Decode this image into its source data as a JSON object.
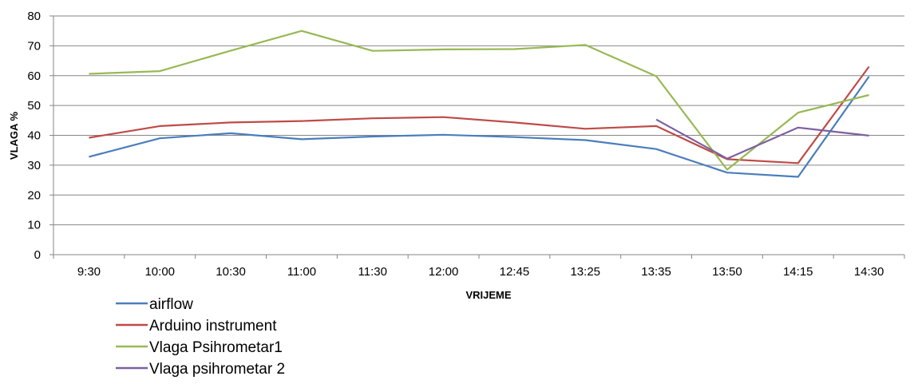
{
  "chart_data": {
    "type": "line",
    "title": "",
    "xlabel": "VRIJEME",
    "ylabel": "VLAGA %",
    "ylim": [
      0,
      80
    ],
    "yticks": [
      0,
      10,
      20,
      30,
      40,
      50,
      60,
      70,
      80
    ],
    "grid": true,
    "legend_position": "bottom-left",
    "categories": [
      "9:30",
      "10:00",
      "10:30",
      "11:00",
      "11:30",
      "12:00",
      "12:45",
      "13:25",
      "13:35",
      "13:50",
      "14:15",
      "14:30"
    ],
    "series": [
      {
        "name": "airflow",
        "color": "#4a7ebb",
        "values": [
          32.8,
          39,
          40.7,
          38.7,
          39.6,
          40.2,
          39.4,
          38.4,
          35.4,
          27.5,
          26.1,
          59.7
        ]
      },
      {
        "name": "Arduino instrument",
        "color": "#be4b48",
        "values": [
          39.2,
          43.1,
          44.3,
          44.8,
          45.7,
          46.1,
          44.3,
          42.2,
          43.1,
          32,
          30.7,
          63
        ]
      },
      {
        "name": "Vlaga Psihrometar1",
        "color": "#98b954",
        "values": [
          60.6,
          61.5,
          68.4,
          75,
          68.3,
          68.8,
          68.9,
          70.3,
          59.8,
          28.5,
          47.6,
          53.5
        ]
      },
      {
        "name": "Vlaga psihrometar 2",
        "color": "#7d60a0",
        "values": [
          null,
          null,
          null,
          null,
          null,
          null,
          null,
          null,
          45.3,
          32.2,
          42.6,
          39.9
        ]
      }
    ]
  }
}
